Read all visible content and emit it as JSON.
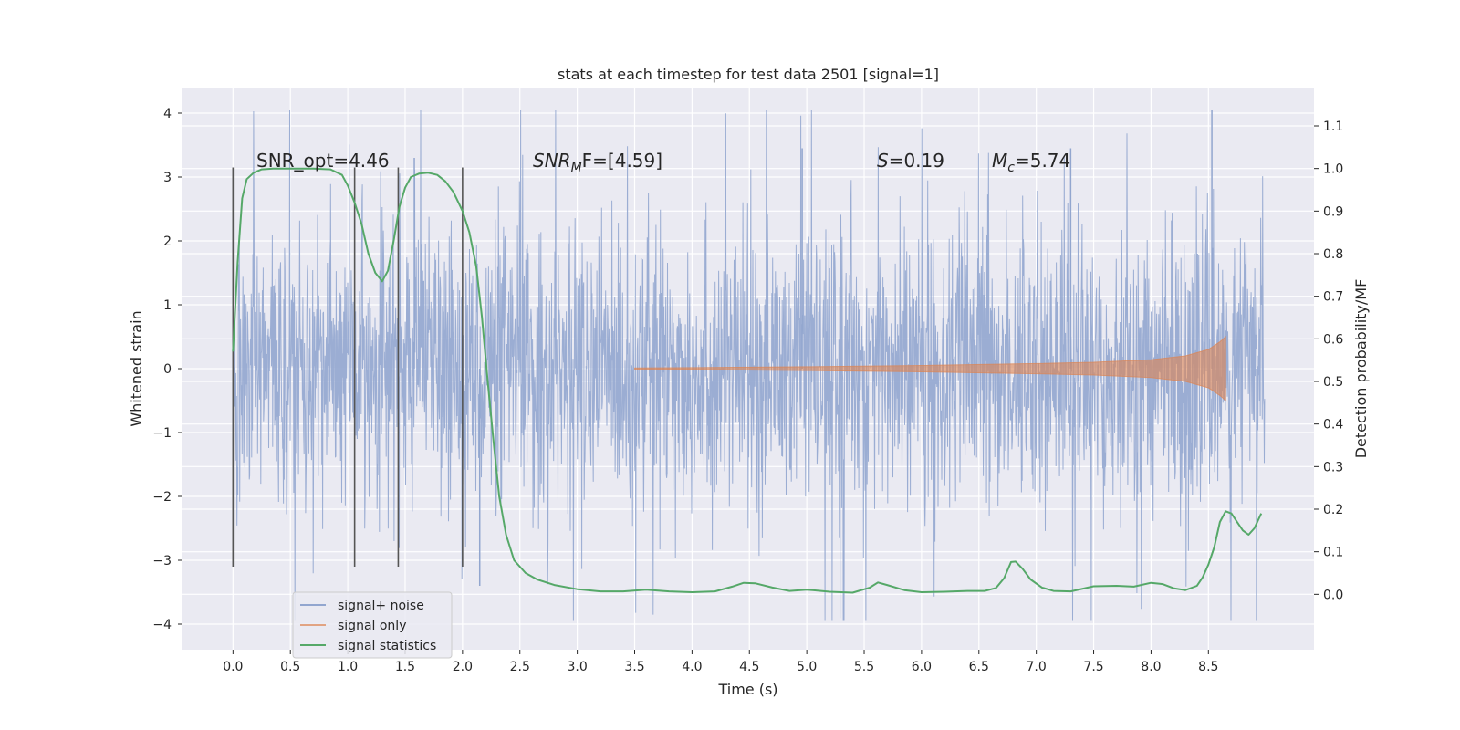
{
  "chart_data": {
    "type": "line",
    "title": "stats at each timestep for test data 2501 [signal=1]",
    "xlabel": "Time (s)",
    "ylabel": "Whitened strain",
    "y2label": "Detection probability/MF",
    "xlim": [
      -0.44,
      9.42
    ],
    "ylim": [
      -4.4,
      4.4
    ],
    "y2lim": [
      -0.13,
      1.19
    ],
    "xticks": [
      0.0,
      0.5,
      1.0,
      1.5,
      2.0,
      2.5,
      3.0,
      3.5,
      4.0,
      4.5,
      5.0,
      5.5,
      6.0,
      6.5,
      7.0,
      7.5,
      8.0,
      8.5
    ],
    "xtick_labels": [
      "0.0",
      "0.5",
      "1.0",
      "1.5",
      "2.0",
      "2.5",
      "3.0",
      "3.5",
      "4.0",
      "4.5",
      "5.0",
      "5.5",
      "6.0",
      "6.5",
      "7.0",
      "7.5",
      "8.0",
      "8.5"
    ],
    "yticks": [
      -4,
      -3,
      -2,
      -1,
      0,
      1,
      2,
      3,
      4
    ],
    "ytick_labels": [
      "−4",
      "−3",
      "−2",
      "−1",
      "0",
      "1",
      "2",
      "3",
      "4"
    ],
    "y2ticks": [
      0.0,
      0.1,
      0.2,
      0.3,
      0.4,
      0.5,
      0.6,
      0.7,
      0.8,
      0.9,
      1.0,
      1.1
    ],
    "y2tick_labels": [
      "0.0",
      "0.1",
      "0.2",
      "0.3",
      "0.4",
      "0.5",
      "0.6",
      "0.7",
      "0.8",
      "0.9",
      "1.0",
      "1.1"
    ],
    "legend": [
      "signal+ noise",
      "signal only",
      "signal statistics"
    ],
    "legend_position": "lower-left",
    "grid": true,
    "vertical_markers_x": [
      0.0,
      1.06,
      1.44,
      2.0
    ],
    "vertical_marker_range": [
      -3.1,
      3.15
    ],
    "noise_series": {
      "name": "signal+ noise",
      "color": "#92a6cf",
      "x_range": [
        0.0,
        8.99
      ],
      "typical_amplitude": 1.3,
      "max": 4.05,
      "min": -3.95
    },
    "signal_series": {
      "name": "signal only",
      "color": "#dd8452",
      "x_range": [
        3.5,
        8.65
      ],
      "envelope": [
        [
          3.5,
          0.01
        ],
        [
          4.0,
          0.015
        ],
        [
          5.0,
          0.03
        ],
        [
          6.0,
          0.05
        ],
        [
          7.0,
          0.08
        ],
        [
          7.5,
          0.1
        ],
        [
          8.0,
          0.14
        ],
        [
          8.3,
          0.2
        ],
        [
          8.5,
          0.3
        ],
        [
          8.6,
          0.42
        ],
        [
          8.65,
          0.5
        ]
      ]
    },
    "statistics_series": {
      "name": "signal statistics",
      "color": "#55a868",
      "x": [
        0.0,
        0.04,
        0.08,
        0.12,
        0.18,
        0.25,
        0.35,
        0.5,
        0.7,
        0.85,
        0.95,
        1.0,
        1.06,
        1.12,
        1.18,
        1.24,
        1.3,
        1.35,
        1.4,
        1.45,
        1.5,
        1.55,
        1.62,
        1.7,
        1.78,
        1.85,
        1.92,
        2.0,
        2.06,
        2.12,
        2.17,
        2.22,
        2.27,
        2.32,
        2.38,
        2.45,
        2.55,
        2.65,
        2.8,
        3.0,
        3.2,
        3.4,
        3.6,
        3.8,
        4.0,
        4.2,
        4.35,
        4.45,
        4.55,
        4.7,
        4.85,
        5.0,
        5.2,
        5.4,
        5.55,
        5.62,
        5.7,
        5.85,
        6.0,
        6.2,
        6.4,
        6.55,
        6.65,
        6.72,
        6.78,
        6.82,
        6.88,
        6.95,
        7.05,
        7.15,
        7.3,
        7.5,
        7.7,
        7.85,
        8.0,
        8.1,
        8.2,
        8.3,
        8.4,
        8.45,
        8.5,
        8.55,
        8.6,
        8.65,
        8.7,
        8.75,
        8.8,
        8.85,
        8.9,
        8.96
      ],
      "values": [
        0.57,
        0.78,
        0.93,
        0.975,
        0.99,
        0.998,
        1.0,
        1.0,
        1.0,
        0.998,
        0.985,
        0.96,
        0.92,
        0.87,
        0.8,
        0.755,
        0.735,
        0.76,
        0.83,
        0.91,
        0.955,
        0.98,
        0.988,
        0.99,
        0.985,
        0.97,
        0.945,
        0.9,
        0.85,
        0.77,
        0.65,
        0.5,
        0.36,
        0.23,
        0.14,
        0.08,
        0.05,
        0.035,
        0.022,
        0.012,
        0.007,
        0.007,
        0.011,
        0.007,
        0.005,
        0.007,
        0.018,
        0.027,
        0.026,
        0.016,
        0.008,
        0.011,
        0.006,
        0.004,
        0.016,
        0.028,
        0.022,
        0.01,
        0.005,
        0.006,
        0.008,
        0.008,
        0.015,
        0.038,
        0.076,
        0.077,
        0.06,
        0.035,
        0.016,
        0.008,
        0.007,
        0.019,
        0.02,
        0.018,
        0.027,
        0.024,
        0.014,
        0.01,
        0.02,
        0.04,
        0.07,
        0.11,
        0.17,
        0.195,
        0.19,
        0.17,
        0.15,
        0.14,
        0.155,
        0.19
      ]
    },
    "annotations": {
      "snr_opt": "SNR_opt=4.46",
      "snr_mf_base": "SNR",
      "snr_mf_sub": "M",
      "snr_mf_tail": "F=[4.59]",
      "s_base": "S",
      "s_tail": "=0.19",
      "mc_base": "M",
      "mc_sub": "c",
      "mc_tail": "=5.74"
    }
  }
}
